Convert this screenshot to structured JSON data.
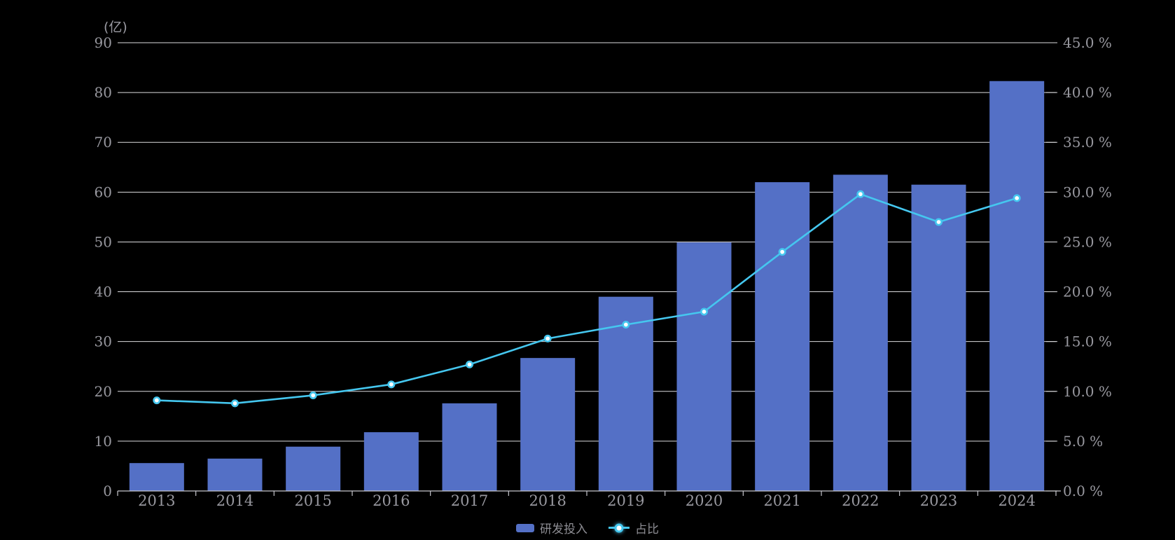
{
  "colors": {
    "background": "#000000",
    "bar": "#5470C6",
    "line": "#45C7EF",
    "marker_fill": "#FFFFFF",
    "grid_line": "#DBDBDE",
    "axis_line": "#C6C6CC",
    "axis_label": "#98989F",
    "legend_text": "#8D8D93"
  },
  "chart_data": {
    "type": "bar+line",
    "title": "",
    "categories": [
      "2013",
      "2014",
      "2015",
      "2016",
      "2017",
      "2018",
      "2019",
      "2020",
      "2021",
      "2022",
      "2023",
      "2024"
    ],
    "series": [
      {
        "name": "研发投入",
        "type": "bar",
        "axis": "left",
        "unit": "亿",
        "values": [
          5.6,
          6.5,
          8.9,
          11.8,
          17.6,
          26.7,
          39.0,
          49.9,
          62.0,
          63.5,
          61.5,
          82.3
        ]
      },
      {
        "name": "占比",
        "type": "line",
        "axis": "right",
        "unit": "%",
        "values": [
          9.1,
          8.8,
          9.6,
          10.7,
          12.7,
          15.3,
          16.7,
          18.0,
          24.0,
          29.8,
          27.0,
          29.4
        ]
      }
    ],
    "left_axis": {
      "label": "(亿)",
      "min": 0,
      "max": 90,
      "step": 10,
      "tick_labels": [
        "0",
        "10",
        "20",
        "30",
        "40",
        "50",
        "60",
        "70",
        "80",
        "90"
      ]
    },
    "right_axis": {
      "min": 0,
      "max": 45,
      "step": 5,
      "tick_labels": [
        "0.0 %",
        "5.0 %",
        "10.0 %",
        "15.0 %",
        "20.0 %",
        "25.0 %",
        "30.0 %",
        "35.0 %",
        "40.0 %",
        "45.0 %"
      ]
    },
    "grid": true,
    "legend_position": "bottom"
  }
}
